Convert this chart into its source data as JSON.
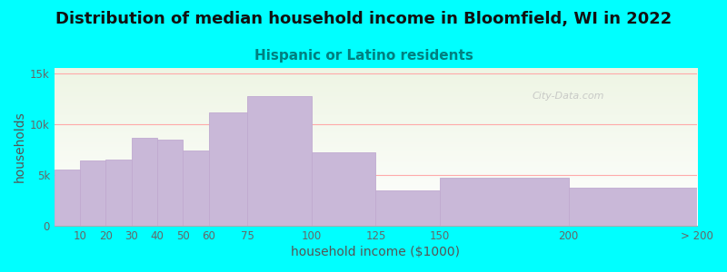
{
  "title": "Distribution of median household income in Bloomfield, WI in 2022",
  "subtitle": "Hispanic or Latino residents",
  "xlabel": "household income ($1000)",
  "ylabel": "households",
  "background_color": "#00FFFF",
  "bar_color": "#c9b8d8",
  "bar_edge_color": "#c0aad0",
  "watermark": "City-Data.com",
  "bin_edges": [
    0,
    10,
    20,
    30,
    40,
    50,
    60,
    75,
    100,
    125,
    150,
    200,
    250
  ],
  "bin_labels": [
    "10",
    "20",
    "30",
    "40",
    "50",
    "60",
    "75",
    "100",
    "125",
    "150",
    "200",
    "> 200"
  ],
  "values": [
    5500,
    6400,
    6500,
    8600,
    8500,
    7400,
    11100,
    12700,
    7200,
    3500,
    4700,
    3700
  ],
  "yticks": [
    0,
    5000,
    10000,
    15000
  ],
  "ytick_labels": [
    "0",
    "5k",
    "10k",
    "15k"
  ],
  "ylim": [
    0,
    15500
  ],
  "grid_color": "#ffaaaa",
  "title_fontsize": 13,
  "subtitle_fontsize": 11,
  "subtitle_color": "#008080",
  "axis_label_fontsize": 10,
  "tick_fontsize": 8.5
}
